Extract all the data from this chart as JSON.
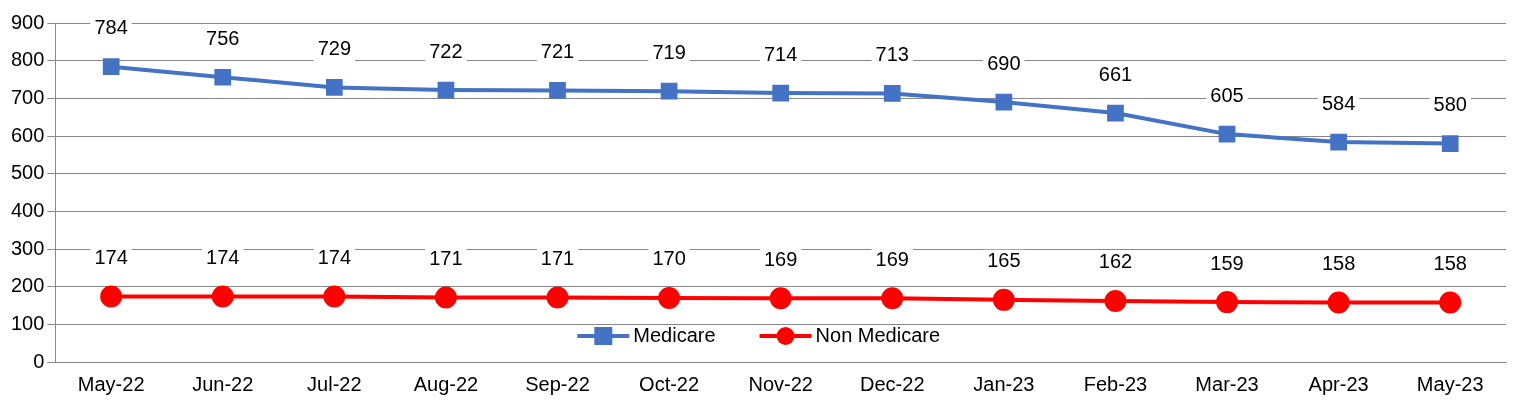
{
  "chart_data": {
    "type": "line",
    "categories": [
      "May-22",
      "Jun-22",
      "Jul-22",
      "Aug-22",
      "Sep-22",
      "Oct-22",
      "Nov-22",
      "Dec-22",
      "Jan-23",
      "Feb-23",
      "Mar-23",
      "Apr-23",
      "May-23"
    ],
    "series": [
      {
        "name": "Medicare",
        "color": "#4472c4",
        "marker": "square",
        "values": [
          784,
          756,
          729,
          722,
          721,
          719,
          714,
          713,
          690,
          661,
          605,
          584,
          580
        ]
      },
      {
        "name": "Non Medicare",
        "color": "#ff0000",
        "marker": "circle",
        "values": [
          174,
          174,
          174,
          171,
          171,
          170,
          169,
          169,
          165,
          162,
          159,
          158,
          158
        ]
      }
    ],
    "ylim": [
      0,
      900
    ],
    "yticks": [
      0,
      100,
      200,
      300,
      400,
      500,
      600,
      700,
      800,
      900
    ],
    "grid": "y",
    "data_labels": true,
    "legend": "bottom",
    "line_style": "solid"
  }
}
